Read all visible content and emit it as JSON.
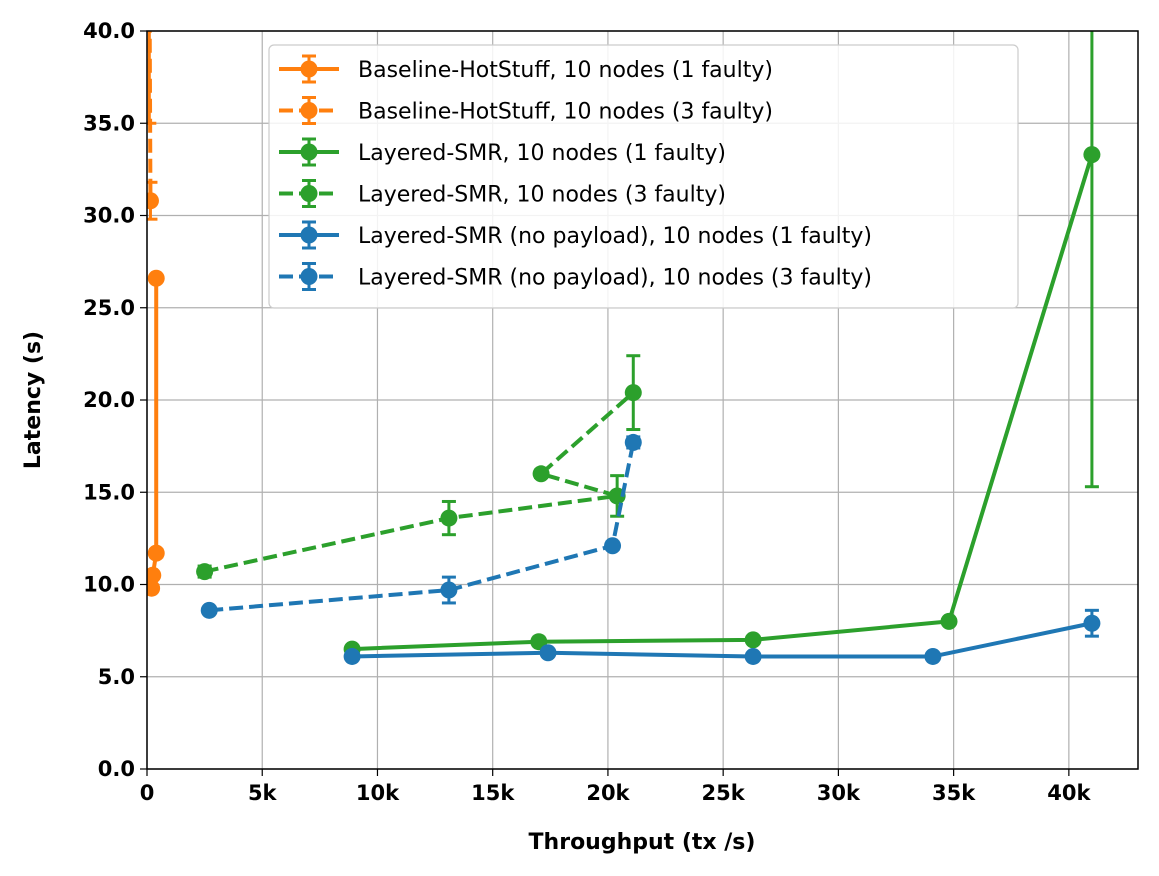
{
  "chart_data": {
    "type": "line",
    "title": "",
    "xlabel": "Throughput (tx /s)",
    "ylabel": "Latency (s)",
    "xlim": [
      0,
      43000
    ],
    "ylim": [
      0,
      40
    ],
    "grid": true,
    "legend_position": "top-center",
    "x_ticks": [
      {
        "value": 0,
        "label": "0"
      },
      {
        "value": 5000,
        "label": "5k"
      },
      {
        "value": 10000,
        "label": "10k"
      },
      {
        "value": 15000,
        "label": "15k"
      },
      {
        "value": 20000,
        "label": "20k"
      },
      {
        "value": 25000,
        "label": "25k"
      },
      {
        "value": 30000,
        "label": "30k"
      },
      {
        "value": 35000,
        "label": "35k"
      },
      {
        "value": 40000,
        "label": "40k"
      }
    ],
    "y_ticks": [
      {
        "value": 0,
        "label": "0.0"
      },
      {
        "value": 5,
        "label": "5.0"
      },
      {
        "value": 10,
        "label": "10.0"
      },
      {
        "value": 15,
        "label": "15.0"
      },
      {
        "value": 20,
        "label": "20.0"
      },
      {
        "value": 25,
        "label": "25.0"
      },
      {
        "value": 30,
        "label": "30.0"
      },
      {
        "value": 35,
        "label": "35.0"
      },
      {
        "value": 40,
        "label": "40.0"
      }
    ],
    "series": [
      {
        "name": "Baseline-HotStuff, 10 nodes (1 faulty)",
        "color": "#ff7f0e",
        "linestyle": "solid",
        "points": [
          {
            "x": 200,
            "y": 9.8,
            "err": 0.1
          },
          {
            "x": 250,
            "y": 10.5,
            "err": 0.1
          },
          {
            "x": 400,
            "y": 11.7,
            "err": 0.2
          },
          {
            "x": 400,
            "y": 26.6,
            "err": 0.1
          }
        ]
      },
      {
        "name": "Baseline-HotStuff, 10 nodes (3 faulty)",
        "color": "#ff7f0e",
        "linestyle": "dashed",
        "points": [
          {
            "x": 100,
            "y": 45.0,
            "err": 10.0
          },
          {
            "x": 150,
            "y": 30.8,
            "err": 1.0
          }
        ]
      },
      {
        "name": "Layered-SMR, 10 nodes (1 faulty)",
        "color": "#2ca02c",
        "linestyle": "solid",
        "points": [
          {
            "x": 8900,
            "y": 6.5,
            "err": 0.1
          },
          {
            "x": 17000,
            "y": 6.9,
            "err": 0.1
          },
          {
            "x": 26300,
            "y": 7.0,
            "err": 0.1
          },
          {
            "x": 34800,
            "y": 8.0,
            "err": 0.1
          },
          {
            "x": 41000,
            "y": 33.3,
            "err": 18.0
          }
        ]
      },
      {
        "name": "Layered-SMR, 10 nodes (3 faulty)",
        "color": "#2ca02c",
        "linestyle": "dashed",
        "points": [
          {
            "x": 2500,
            "y": 10.7,
            "err": 0.3
          },
          {
            "x": 13100,
            "y": 13.6,
            "err": 0.9
          },
          {
            "x": 20400,
            "y": 14.8,
            "err": 1.1
          },
          {
            "x": 17100,
            "y": 16.0,
            "err": 0.2
          },
          {
            "x": 21100,
            "y": 20.4,
            "err": 2.0
          }
        ]
      },
      {
        "name": "Layered-SMR (no payload), 10 nodes (1 faulty)",
        "color": "#1f77b4",
        "linestyle": "solid",
        "points": [
          {
            "x": 8900,
            "y": 6.1,
            "err": 0.1
          },
          {
            "x": 17400,
            "y": 6.3,
            "err": 0.1
          },
          {
            "x": 26300,
            "y": 6.1,
            "err": 0.1
          },
          {
            "x": 34100,
            "y": 6.1,
            "err": 0.1
          },
          {
            "x": 41000,
            "y": 7.9,
            "err": 0.7
          }
        ]
      },
      {
        "name": "Layered-SMR (no payload), 10 nodes (3 faulty)",
        "color": "#1f77b4",
        "linestyle": "dashed",
        "points": [
          {
            "x": 2700,
            "y": 8.6,
            "err": 0.1
          },
          {
            "x": 13100,
            "y": 9.7,
            "err": 0.7
          },
          {
            "x": 20200,
            "y": 12.1,
            "err": 0.2
          },
          {
            "x": 21100,
            "y": 17.7,
            "err": 0.3
          }
        ]
      }
    ]
  }
}
